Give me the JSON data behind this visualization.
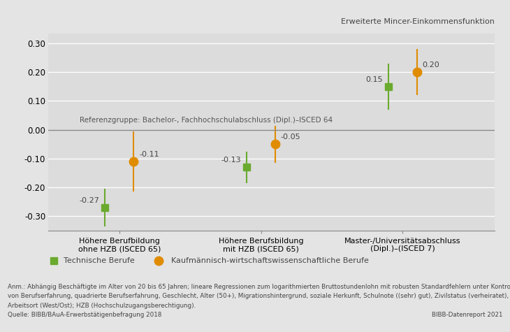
{
  "categories": [
    "Höhere Berufbildung\nohne HZB (ISCED 65)",
    "Höhere Berufsbildung\nmit HZB (ISCED 65)",
    "Master-/Universitätsabschluss\n(Dipl.)–(ISCED 7)"
  ],
  "green_values": [
    -0.27,
    -0.13,
    0.15
  ],
  "green_ci_low": [
    -0.335,
    -0.185,
    0.07
  ],
  "green_ci_high": [
    -0.205,
    -0.075,
    0.23
  ],
  "orange_values": [
    -0.11,
    -0.05,
    0.2
  ],
  "orange_ci_low": [
    -0.215,
    -0.115,
    0.12
  ],
  "orange_ci_high": [
    -0.005,
    0.015,
    0.28
  ],
  "green_color": "#6aaa2e",
  "orange_color": "#e08c00",
  "ylim": [
    -0.35,
    0.335
  ],
  "yticks": [
    -0.3,
    -0.2,
    -0.1,
    0.0,
    0.1,
    0.2,
    0.3
  ],
  "ref_text": "Referenzgruppe: Bachelor-, Fachhochschulabschluss (Dipl.)–ISCED 64",
  "top_right_text": "Erweiterte Mincer-Einkommensfunktion",
  "legend_green": "Technische Berufe",
  "legend_orange": "Kaufmännisch-wirtschaftswissenschaftliche Berufe",
  "footnote_line1": "Anm.: Abhängig Beschäftigte im Alter von 20 bis 65 Jahren; lineare Regressionen zum logarithmierten Bruttostundenlohn mit robusten Standardfehlern unter Kontrolle",
  "footnote_line2": "von Berufserfahrung, quadrierte Berufserfahrung, Geschlecht, Alter (50+), Migrationshintergrund, soziale Herkunft, Schulnote ((sehr) gut), Zivilstatus (verheiratet), Kinder,",
  "footnote_line3": "Arbeitsort (West/Ost); HZB (Hochschulzugangsberechtigung).",
  "footnote_source": "Quelle: BIBB/BAuA-Erwerbstätigenbefragung 2018",
  "footnote_right": "BIBB-Datenreport 2021",
  "bg_color": "#e4e4e4",
  "plot_bg_color": "#dcdcdc"
}
